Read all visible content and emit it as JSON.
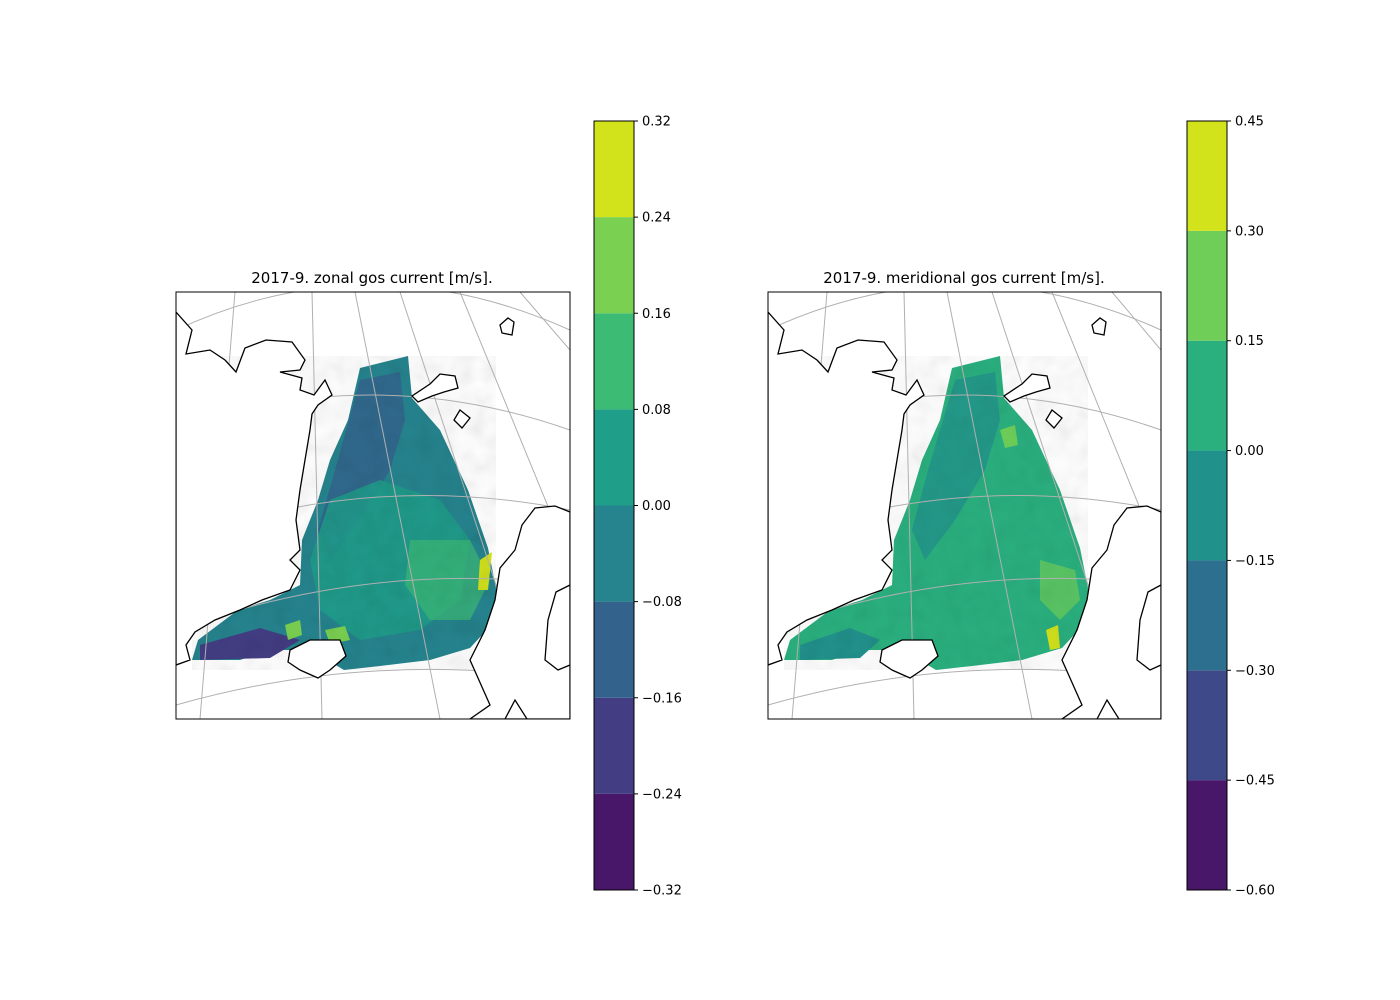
{
  "chart_data": [
    {
      "type": "heatmap",
      "title": "2017-9. zonal gos current [m/s].",
      "xlabel": "",
      "ylabel": "",
      "map": "polar stereographic, Greenland–Iceland–Norwegian Seas region with coastlines and lat/lon graticule",
      "colormap": "viridis",
      "colorbar": {
        "levels": [
          -0.32,
          -0.24,
          -0.16,
          -0.08,
          0.0,
          0.08,
          0.16,
          0.24,
          0.32
        ],
        "tick_labels": [
          "−0.32",
          "−0.24",
          "−0.16",
          "−0.08",
          "0.00",
          "0.08",
          "0.16",
          "0.24",
          "0.32"
        ],
        "colors": [
          "#481769",
          "#433d84",
          "#33638d",
          "#25848e",
          "#1f9e89",
          "#3cbb75",
          "#7ad151",
          "#d2e21b"
        ]
      },
      "value_range": [
        -0.32,
        0.32
      ],
      "grid": true
    },
    {
      "type": "heatmap",
      "title": "2017-9. meridional gos current [m/s].",
      "xlabel": "",
      "ylabel": "",
      "map": "polar stereographic, Greenland–Iceland–Norwegian Seas region with coastlines and lat/lon graticule",
      "colormap": "viridis",
      "colorbar": {
        "levels": [
          -0.6,
          -0.45,
          -0.3,
          -0.15,
          0.0,
          0.15,
          0.3,
          0.45
        ],
        "tick_labels": [
          "−0.60",
          "−0.45",
          "−0.30",
          "−0.15",
          "0.00",
          "0.15",
          "0.30",
          "0.45"
        ],
        "colors": [
          "#481769",
          "#3e4989",
          "#2c6f8e",
          "#21918c",
          "#2ab07f",
          "#6ece58",
          "#d2e21b"
        ]
      },
      "value_range": [
        -0.6,
        0.45
      ],
      "grid": true
    }
  ]
}
